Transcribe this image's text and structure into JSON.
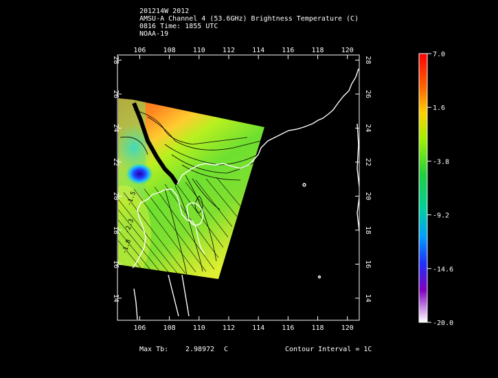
{
  "header": {
    "line1": "201214W 2012",
    "line2": "AMSU-A Channel 4 (53.6GHz) Brightness Temperature (C)",
    "line3": "0816 Time: 1855 UTC",
    "line4": "NOAA-19"
  },
  "map": {
    "lon_ticks": [
      "106",
      "108",
      "110",
      "112",
      "114",
      "116",
      "118",
      "120"
    ],
    "lat_ticks": [
      "28",
      "26",
      "24",
      "22",
      "20",
      "18",
      "16",
      "14"
    ],
    "lon_range": [
      104.5,
      120.8
    ],
    "lat_range": [
      12.7,
      28.3
    ]
  },
  "colorbar": {
    "labels": [
      "7.0",
      "1.6",
      "-3.8",
      "-9.2",
      "-14.6",
      "-20.0"
    ],
    "range": [
      -20.0,
      7.0
    ]
  },
  "footer": {
    "max_label": "Max Tb:",
    "max_value": "2.98972",
    "max_unit": "C",
    "contour": "Contour Interval = 1C"
  },
  "colors": {
    "warm": "#ff4000",
    "mid": "#33cc33",
    "cold": "#1a1aff",
    "background": "#000000",
    "coast": "#ffffff"
  }
}
